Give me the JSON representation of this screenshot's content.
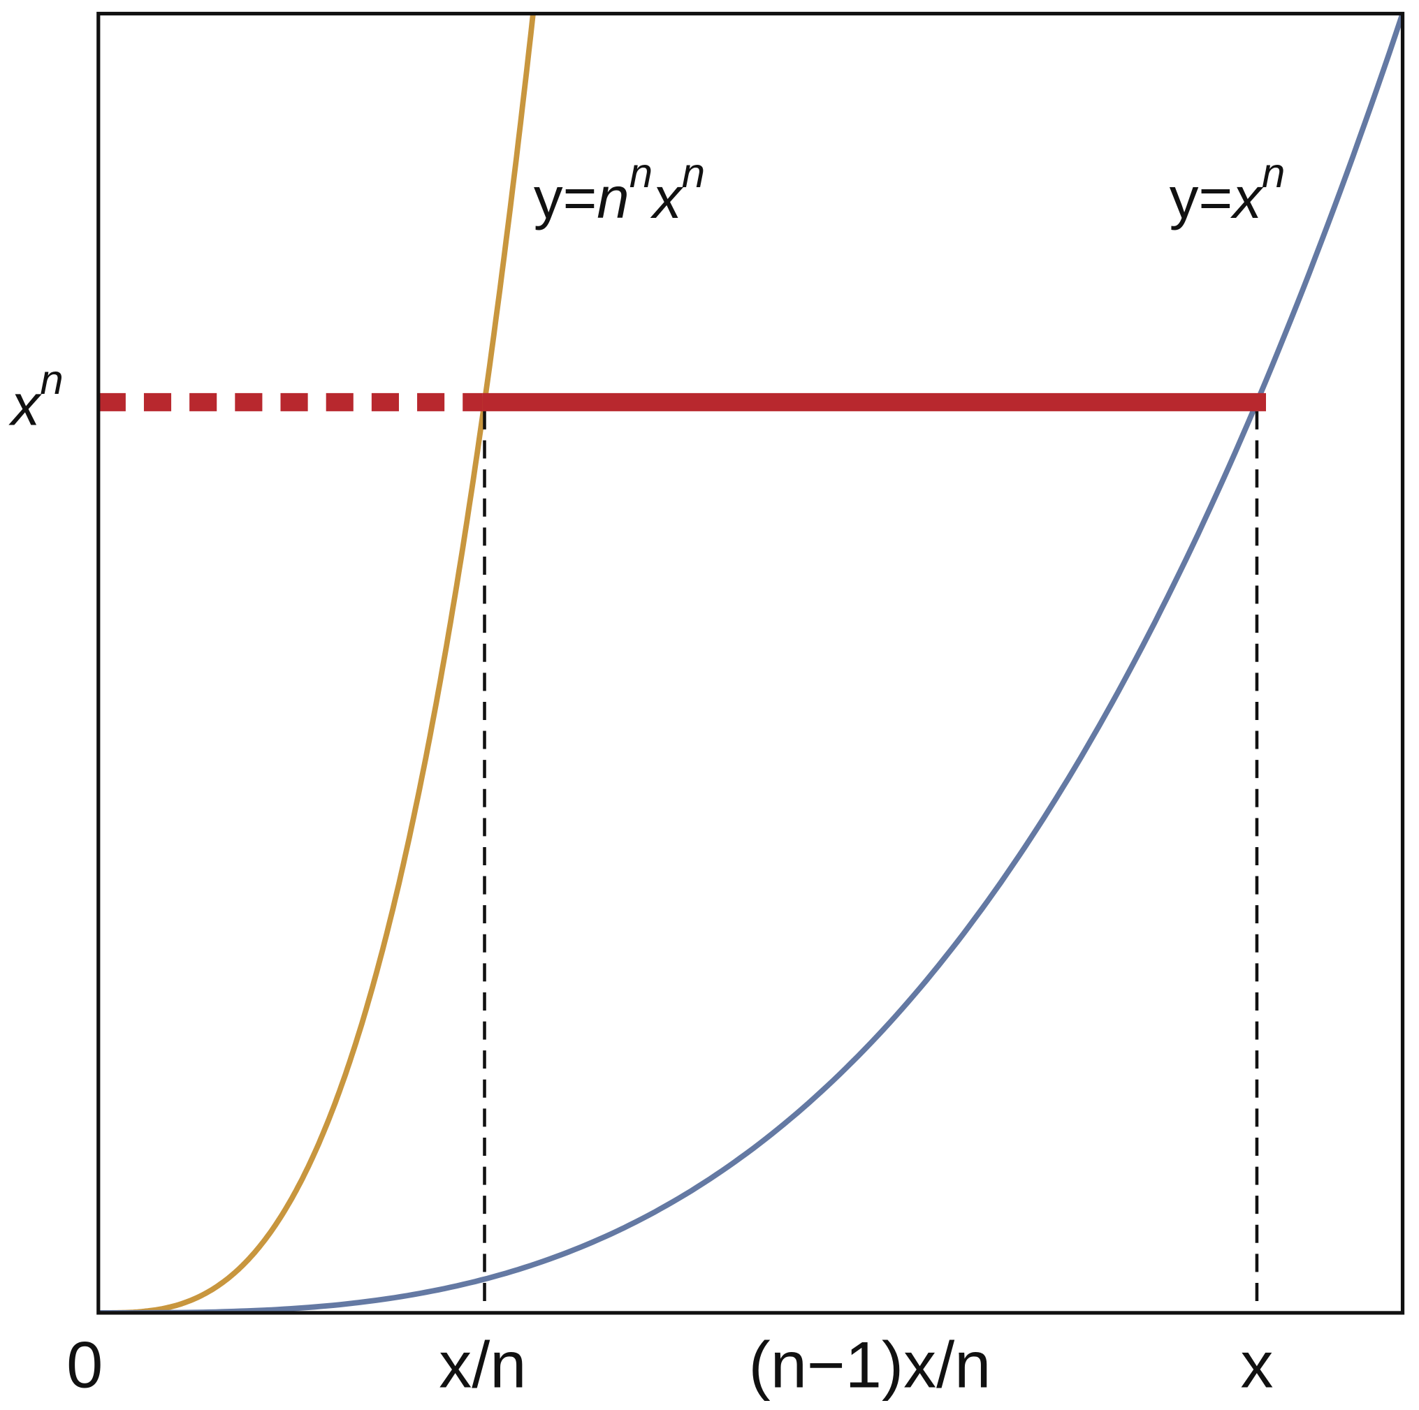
{
  "curve_labels": [
    [
      {
        "t": "y="
      },
      {
        "t": "n",
        "style": "italic"
      },
      {
        "t": "n",
        "style": "sup"
      },
      {
        "t": "x",
        "style": "italic"
      },
      {
        "t": "n",
        "style": "sup"
      }
    ],
    [
      {
        "t": "y="
      },
      {
        "t": "x",
        "style": "italic"
      },
      {
        "t": "n",
        "style": "sup"
      }
    ]
  ],
  "y_label": [
    {
      "t": "x",
      "style": "italic"
    },
    {
      "t": "n",
      "style": "sup"
    }
  ],
  "x_labels": [
    "0",
    "x/n",
    "(n−1)x/n",
    "x"
  ]
}
